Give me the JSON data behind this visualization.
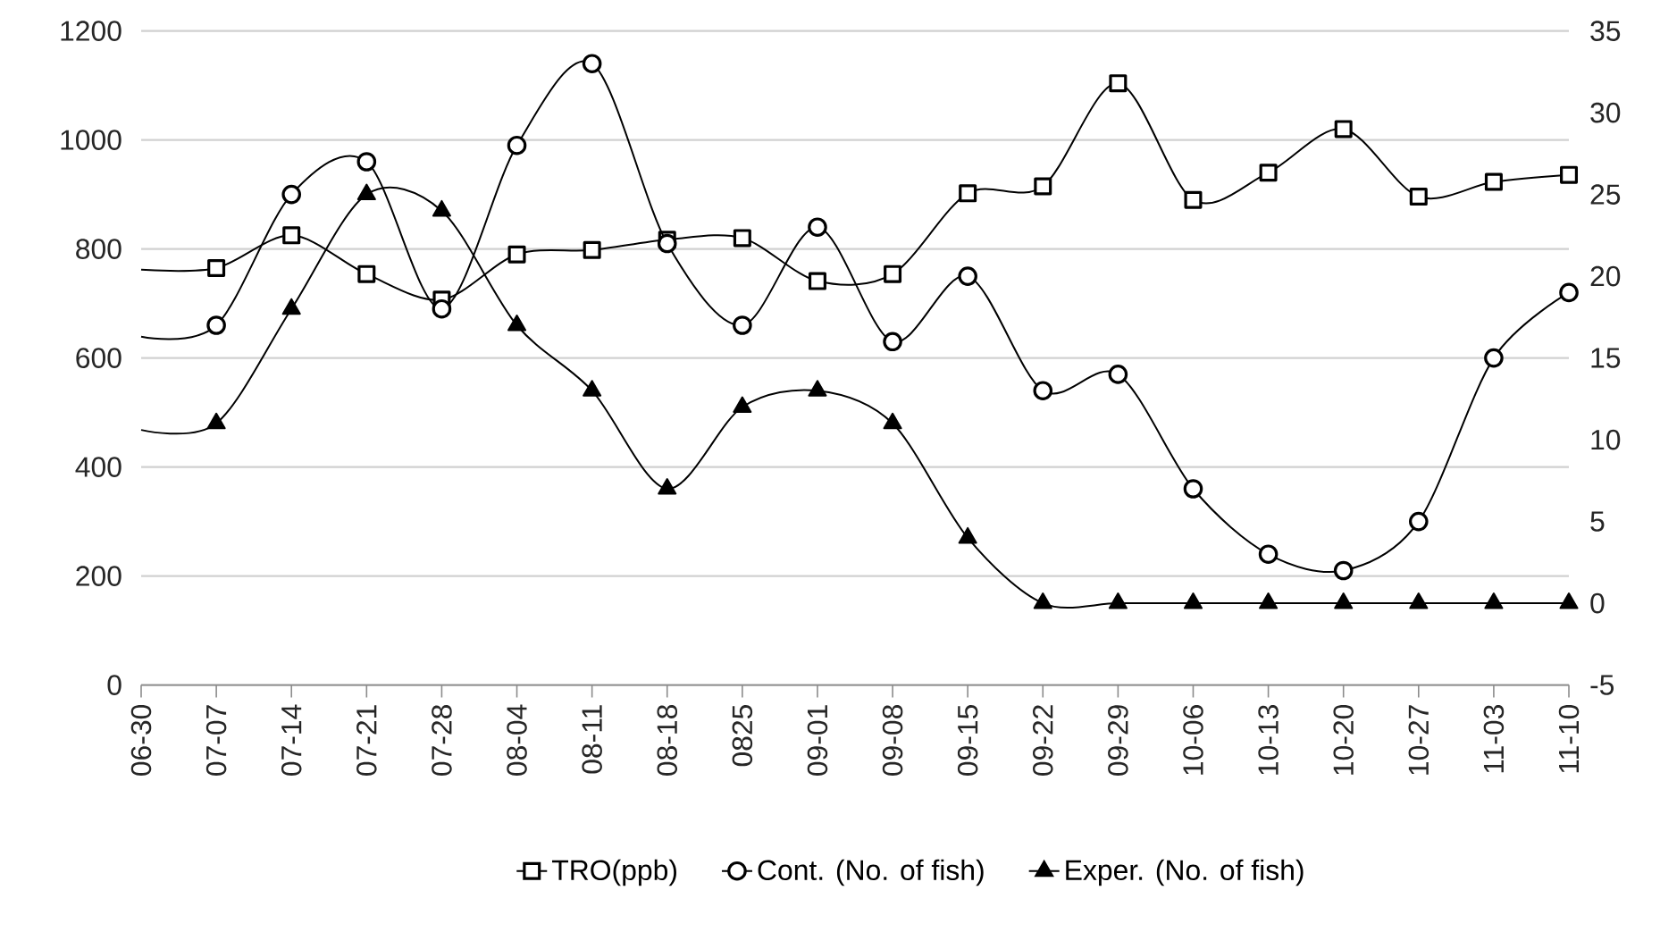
{
  "chart_data": {
    "type": "line",
    "categories": [
      "06-30",
      "07-07",
      "07-14",
      "07-21",
      "07-28",
      "08-04",
      "08-11",
      "08-18",
      "0825",
      "09-01",
      "09-08",
      "09-15",
      "09-22",
      "09-29",
      "10-06",
      "10-13",
      "10-20",
      "10-27",
      "11-03",
      "11-10"
    ],
    "series": [
      {
        "name": "TRO(ppb)",
        "color": "#000000",
        "marker": "square",
        "values": [
          762,
          765,
          825,
          754,
          707,
          790,
          798,
          817,
          820,
          741,
          754,
          902,
          915,
          1104,
          890,
          940,
          1020,
          896,
          923,
          936
        ]
      },
      {
        "name": "Cont. (No. of fish)",
        "color": "#000000",
        "marker": "circle",
        "axis": "y2",
        "values": [
          16.3,
          17,
          25,
          27,
          18,
          28,
          33,
          22,
          17,
          23,
          16,
          20,
          13,
          14,
          7,
          3,
          2,
          5,
          15,
          19
        ]
      },
      {
        "name": "Exper. (No. of fish)",
        "color": "#000000",
        "marker": "triangle",
        "axis": "y2",
        "values": [
          10.6,
          11,
          18,
          25,
          24,
          17,
          13,
          7,
          12,
          13,
          11,
          4,
          0,
          0,
          0,
          0,
          0,
          0,
          0,
          0
        ]
      }
    ],
    "ylim": [
      0,
      1200
    ],
    "yticks": [
      0,
      200,
      400,
      600,
      800,
      1000,
      1200
    ],
    "y2lim": [
      -5,
      35
    ],
    "y2ticks": [
      -5,
      0,
      5,
      10,
      15,
      20,
      25,
      30,
      35
    ],
    "grid": "y",
    "legend": "bottom",
    "line_style": "solid"
  }
}
